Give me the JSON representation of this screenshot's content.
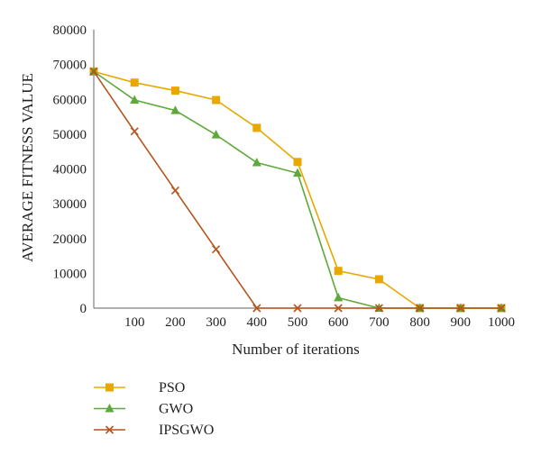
{
  "chart_data": {
    "type": "line",
    "title": "",
    "xlabel": "Number of iterations",
    "ylabel": "AVERAGE FITNESS VALUE",
    "x": [
      0,
      100,
      200,
      300,
      400,
      500,
      600,
      700,
      800,
      900,
      1000
    ],
    "x_tick_labels": [
      "100",
      "200",
      "300",
      "400",
      "500",
      "600",
      "700",
      "800",
      "900",
      "1000"
    ],
    "y_tick_labels": [
      "0",
      "10000",
      "20000",
      "30000",
      "40000",
      "50000",
      "60000",
      "70000",
      "80000"
    ],
    "xlim": [
      0,
      1000
    ],
    "ylim": [
      0,
      80000
    ],
    "grid": false,
    "legend_position": "bottom-left",
    "series": [
      {
        "name": "PSO",
        "color": "#E9A800",
        "marker": "square",
        "values": [
          68000,
          64800,
          62500,
          59800,
          51800,
          42000,
          10700,
          8300,
          0,
          0,
          0
        ]
      },
      {
        "name": "GWO",
        "color": "#5FA83A",
        "marker": "triangle",
        "values": [
          68000,
          59800,
          56800,
          49800,
          41800,
          38800,
          3000,
          0,
          0,
          0,
          0
        ]
      },
      {
        "name": "IPSGWO",
        "color": "#B5541C",
        "marker": "cross",
        "values": [
          68000,
          50800,
          33800,
          16900,
          0,
          0,
          0,
          0,
          0,
          0,
          0
        ]
      }
    ]
  }
}
